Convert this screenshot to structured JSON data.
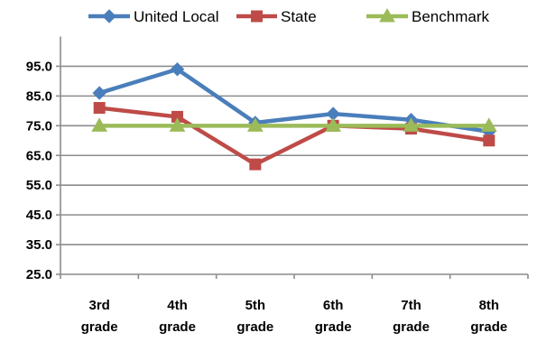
{
  "chart_data": {
    "type": "line",
    "categories": [
      "3rd grade",
      "4th grade",
      "5th grade",
      "6th grade",
      "7th grade",
      "8th grade"
    ],
    "category_lines": [
      [
        "3rd",
        "grade"
      ],
      [
        "4th",
        "grade"
      ],
      [
        "5th",
        "grade"
      ],
      [
        "6th",
        "grade"
      ],
      [
        "7th",
        "grade"
      ],
      [
        "8th",
        "grade"
      ]
    ],
    "series": [
      {
        "name": "United Local",
        "values": [
          86.0,
          94.0,
          76.0,
          79.0,
          77.0,
          73.0
        ],
        "color": "#4A7EBB",
        "marker": "diamond"
      },
      {
        "name": "State",
        "values": [
          81.0,
          78.0,
          62.0,
          75.0,
          74.0,
          70.0
        ],
        "color": "#BE4B48",
        "marker": "square"
      },
      {
        "name": "Benchmark",
        "values": [
          75.0,
          75.0,
          75.0,
          75.0,
          75.0,
          75.0
        ],
        "color": "#9BBB59",
        "marker": "triangle"
      }
    ],
    "y_ticks": [
      "25.0",
      "35.0",
      "45.0",
      "55.0",
      "65.0",
      "75.0",
      "85.0",
      "95.0"
    ],
    "ylim": [
      25,
      105
    ],
    "grid": true,
    "legend_position": "top",
    "title": "",
    "xlabel": "",
    "ylabel": ""
  }
}
